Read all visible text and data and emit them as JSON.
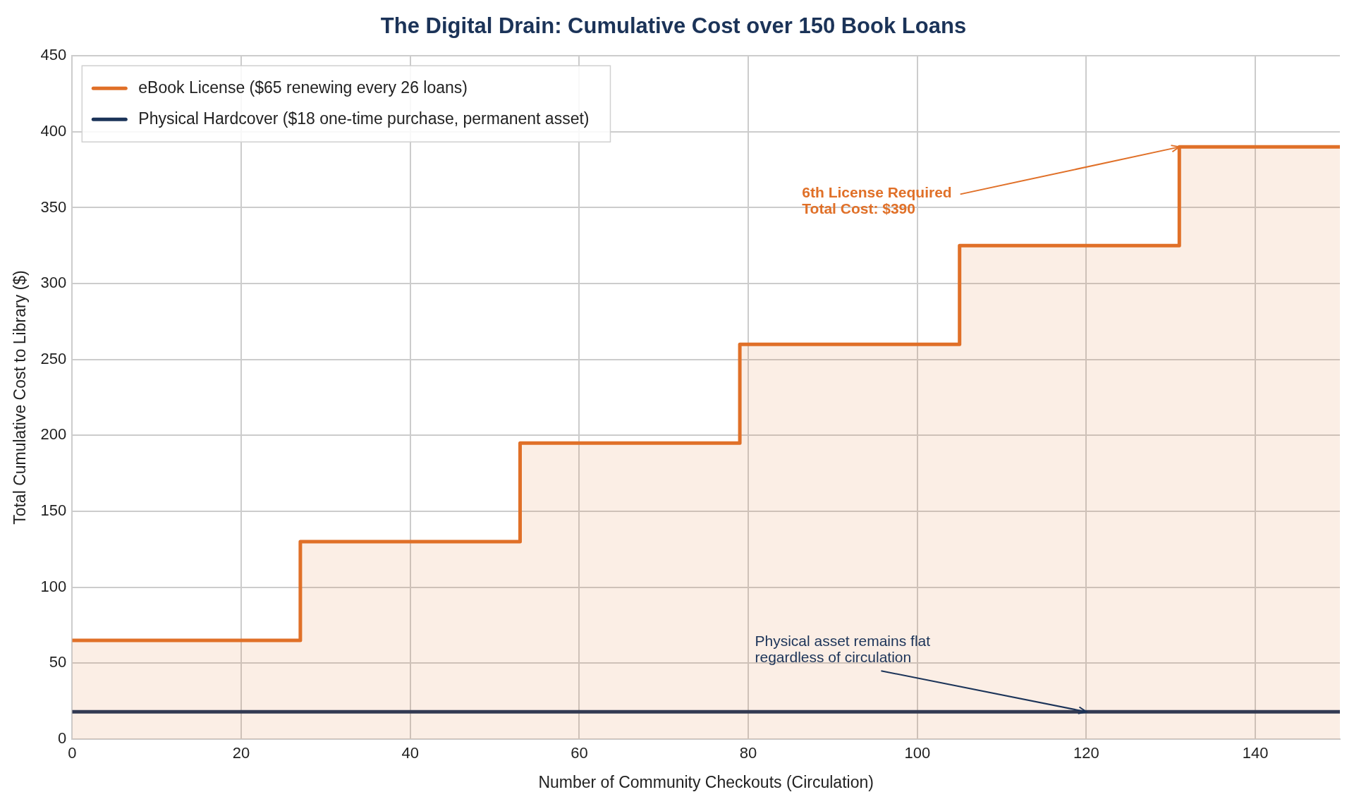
{
  "chart_data": {
    "type": "area",
    "title": "The Digital Drain: Cumulative Cost over 150 Book Loans",
    "xlabel": "Number of Community Checkouts (Circulation)",
    "ylabel": "Total Cumulative Cost to Library ($)",
    "series": [
      {
        "name": "eBook License ($65 renewing every 26 loans)",
        "color": "#e07028",
        "x": [
          0,
          27,
          27,
          53,
          53,
          79,
          79,
          105,
          105,
          131,
          131,
          150
        ],
        "values": [
          65,
          65,
          130,
          130,
          195,
          195,
          260,
          260,
          325,
          325,
          390,
          390
        ]
      },
      {
        "name": "Physical Hardcover ($18 one-time purchase, permanent asset)",
        "type": "line",
        "color": "#1b3358",
        "x": [
          0,
          150
        ],
        "values": [
          18,
          18
        ]
      }
    ],
    "annotations": [
      {
        "text": "6th License Required\nTotal Cost: $390",
        "x": 131,
        "y": 390
      },
      {
        "text": "Physical asset remains flat\nregardless of circulation",
        "x": 120,
        "y": 18
      }
    ],
    "xlim": [
      0,
      150
    ],
    "xticks": [
      0,
      20,
      40,
      60,
      80,
      100,
      120,
      140
    ],
    "ylim": [
      0,
      450
    ],
    "yticks": [
      0,
      50,
      100,
      150,
      200,
      250,
      300,
      350,
      400,
      450
    ],
    "grid": true,
    "legend": "top left"
  }
}
